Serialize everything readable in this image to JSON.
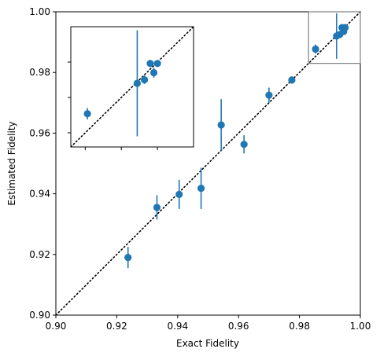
{
  "chart_data": [
    {
      "type": "scatter",
      "title": "",
      "xlabel": "Exact Fidelity",
      "ylabel": "Estimated Fidelity",
      "xlim": [
        0.9,
        1.0
      ],
      "ylim": [
        0.9,
        1.0
      ],
      "xticks": [
        "0.90",
        "0.92",
        "0.94",
        "0.96",
        "0.98",
        "1.00"
      ],
      "yticks": [
        "0.90",
        "0.92",
        "0.94",
        "0.96",
        "0.98",
        "1.00"
      ],
      "grid": false,
      "reference_line": "y = x (dotted)",
      "marker_color": "#1f77b4",
      "points": [
        {
          "x": 0.9237,
          "y": 0.919,
          "err": 0.0035
        },
        {
          "x": 0.9332,
          "y": 0.9355,
          "err": 0.004
        },
        {
          "x": 0.9405,
          "y": 0.9398,
          "err": 0.0048
        },
        {
          "x": 0.9477,
          "y": 0.9418,
          "err": 0.0068
        },
        {
          "x": 0.9543,
          "y": 0.9627,
          "err": 0.0085
        },
        {
          "x": 0.9618,
          "y": 0.9563,
          "err": 0.003
        },
        {
          "x": 0.97,
          "y": 0.9725,
          "err": 0.0025
        },
        {
          "x": 0.9775,
          "y": 0.9775,
          "err": 0.0012
        },
        {
          "x": 0.9853,
          "y": 0.9877,
          "err": 0.0015
        },
        {
          "x": 0.9922,
          "y": 0.992,
          "err": 0.0075
        },
        {
          "x": 0.9932,
          "y": 0.9925,
          "err": 0.001
        },
        {
          "x": 0.994,
          "y": 0.9948,
          "err": 0.0008
        },
        {
          "x": 0.9945,
          "y": 0.9935,
          "err": 0.001
        },
        {
          "x": 0.995,
          "y": 0.9948,
          "err": 0.0006
        }
      ]
    },
    {
      "type": "scatter",
      "title": "",
      "xlim": [
        0.983,
        1.0
      ],
      "ylim": [
        0.983,
        1.0
      ],
      "tick_labels": false,
      "reference_line": "y = x (dotted)",
      "marker_color": "#1f77b4",
      "points": [
        {
          "x": 0.9853,
          "y": 0.9877,
          "err": 0.0008
        },
        {
          "x": 0.9922,
          "y": 0.992,
          "err": 0.0075
        },
        {
          "x": 0.9932,
          "y": 0.9925,
          "err": 0.0006
        },
        {
          "x": 0.994,
          "y": 0.9948,
          "err": 0.0005
        },
        {
          "x": 0.9945,
          "y": 0.9935,
          "err": 0.0007
        },
        {
          "x": 0.995,
          "y": 0.9948,
          "err": 0.0004
        }
      ]
    }
  ]
}
